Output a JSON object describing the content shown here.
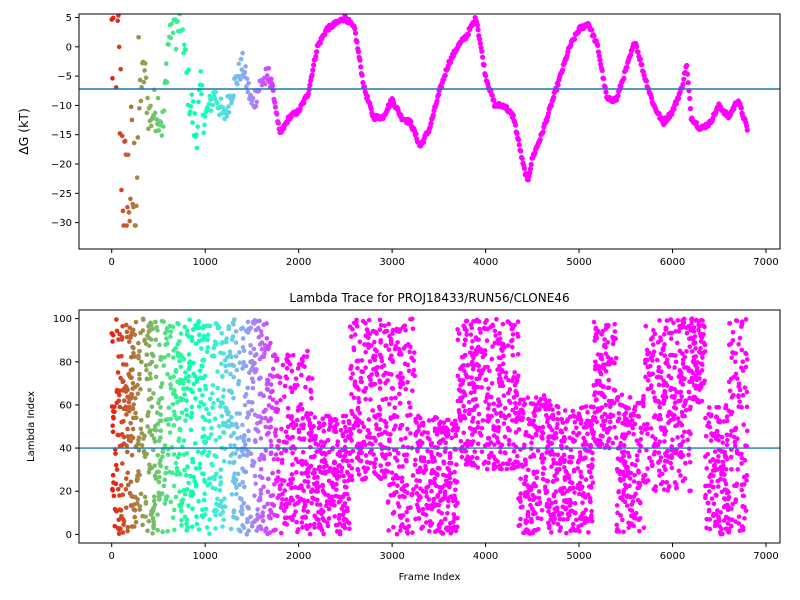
{
  "chart_data": [
    {
      "type": "scatter",
      "title": "",
      "xlabel": "",
      "ylabel": "ΔG (kT)",
      "xlim": [
        -350,
        7150
      ],
      "ylim": [
        -34.5,
        5.6
      ],
      "xticks": [
        0,
        1000,
        2000,
        3000,
        4000,
        5000,
        6000,
        7000
      ],
      "yticks": [
        -30,
        -25,
        -20,
        -15,
        -10,
        -5,
        0,
        5
      ],
      "hline": -7.2,
      "hline_color": "#1f77b4",
      "colormap": "rainbow (reversed along frame index: red at frame 0, violet at late frames)",
      "grid": false,
      "trace_keypoints": [
        [
          0,
          0
        ],
        [
          50,
          3
        ],
        [
          100,
          -14
        ],
        [
          150,
          -29
        ],
        [
          200,
          -22
        ],
        [
          250,
          -27
        ],
        [
          300,
          -8
        ],
        [
          350,
          -4
        ],
        [
          400,
          -12
        ],
        [
          500,
          -10
        ],
        [
          550,
          -14
        ],
        [
          600,
          0
        ],
        [
          650,
          5
        ],
        [
          700,
          3
        ],
        [
          750,
          5
        ],
        [
          800,
          -5
        ],
        [
          850,
          -10
        ],
        [
          900,
          -15
        ],
        [
          950,
          -8
        ],
        [
          1000,
          -12
        ],
        [
          1100,
          -8
        ],
        [
          1200,
          -12
        ],
        [
          1300,
          -7
        ],
        [
          1400,
          -3
        ],
        [
          1500,
          -10
        ],
        [
          1600,
          -6
        ],
        [
          1700,
          -5
        ],
        [
          1800,
          -15
        ],
        [
          1900,
          -12
        ],
        [
          2000,
          -11
        ],
        [
          2100,
          -8
        ],
        [
          2200,
          0
        ],
        [
          2300,
          3
        ],
        [
          2400,
          4
        ],
        [
          2500,
          5
        ],
        [
          2600,
          3
        ],
        [
          2700,
          -7
        ],
        [
          2800,
          -12
        ],
        [
          2900,
          -12
        ],
        [
          3000,
          -9
        ],
        [
          3100,
          -12
        ],
        [
          3200,
          -13
        ],
        [
          3300,
          -17
        ],
        [
          3400,
          -14
        ],
        [
          3500,
          -8
        ],
        [
          3600,
          -3
        ],
        [
          3700,
          0
        ],
        [
          3800,
          2
        ],
        [
          3900,
          5
        ],
        [
          4000,
          -5
        ],
        [
          4100,
          -10
        ],
        [
          4200,
          -10
        ],
        [
          4300,
          -12
        ],
        [
          4400,
          -20
        ],
        [
          4450,
          -23
        ],
        [
          4500,
          -19
        ],
        [
          4600,
          -15
        ],
        [
          4700,
          -10
        ],
        [
          4800,
          -5
        ],
        [
          4900,
          0
        ],
        [
          5000,
          3
        ],
        [
          5100,
          4
        ],
        [
          5200,
          0
        ],
        [
          5300,
          -9
        ],
        [
          5400,
          -9
        ],
        [
          5500,
          -4
        ],
        [
          5600,
          1
        ],
        [
          5700,
          -5
        ],
        [
          5800,
          -10
        ],
        [
          5900,
          -13
        ],
        [
          6000,
          -11
        ],
        [
          6100,
          -7
        ],
        [
          6150,
          -3
        ],
        [
          6200,
          -12
        ],
        [
          6300,
          -14
        ],
        [
          6400,
          -13
        ],
        [
          6500,
          -10
        ],
        [
          6600,
          -12
        ],
        [
          6700,
          -9
        ],
        [
          6800,
          -14
        ]
      ]
    },
    {
      "type": "scatter",
      "title": "Lambda Trace for PROJ18433/RUN56/CLONE46",
      "xlabel": "Frame Index",
      "ylabel": "Lambda Index",
      "xlim": [
        -350,
        7150
      ],
      "ylim": [
        -4,
        104
      ],
      "xticks": [
        0,
        1000,
        2000,
        3000,
        4000,
        5000,
        6000,
        7000
      ],
      "yticks": [
        0,
        20,
        40,
        60,
        80,
        100
      ],
      "hline": 40,
      "hline_color": "#1f77b4",
      "colormap": "rainbow (reversed along frame index: red at frame 0, violet at late frames)",
      "grid": false,
      "density_segments": [
        [
          0,
          200,
          0,
          100
        ],
        [
          200,
          900,
          0,
          100
        ],
        [
          900,
          1700,
          0,
          100
        ],
        [
          1700,
          2150,
          0,
          85
        ],
        [
          2150,
          2550,
          0,
          55
        ],
        [
          2550,
          2950,
          25,
          100
        ],
        [
          2950,
          3250,
          0,
          100
        ],
        [
          3250,
          3700,
          0,
          55
        ],
        [
          3700,
          4350,
          30,
          100
        ],
        [
          4350,
          4700,
          0,
          65
        ],
        [
          4700,
          5150,
          0,
          60
        ],
        [
          5150,
          5400,
          40,
          100
        ],
        [
          5400,
          5700,
          0,
          65
        ],
        [
          5700,
          6200,
          20,
          100
        ],
        [
          6200,
          6350,
          60,
          100
        ],
        [
          6350,
          6600,
          0,
          60
        ],
        [
          6600,
          6800,
          0,
          100
        ]
      ]
    }
  ]
}
